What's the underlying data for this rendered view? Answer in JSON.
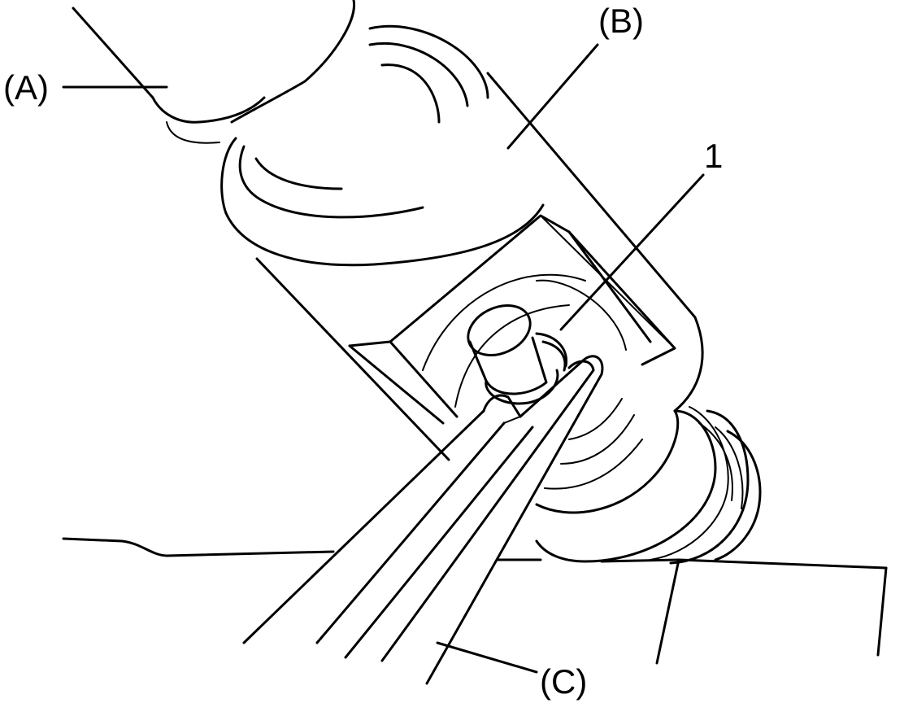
{
  "callouts": {
    "a": "(A)",
    "b": "(B)",
    "one": "1",
    "c": "(C)"
  }
}
